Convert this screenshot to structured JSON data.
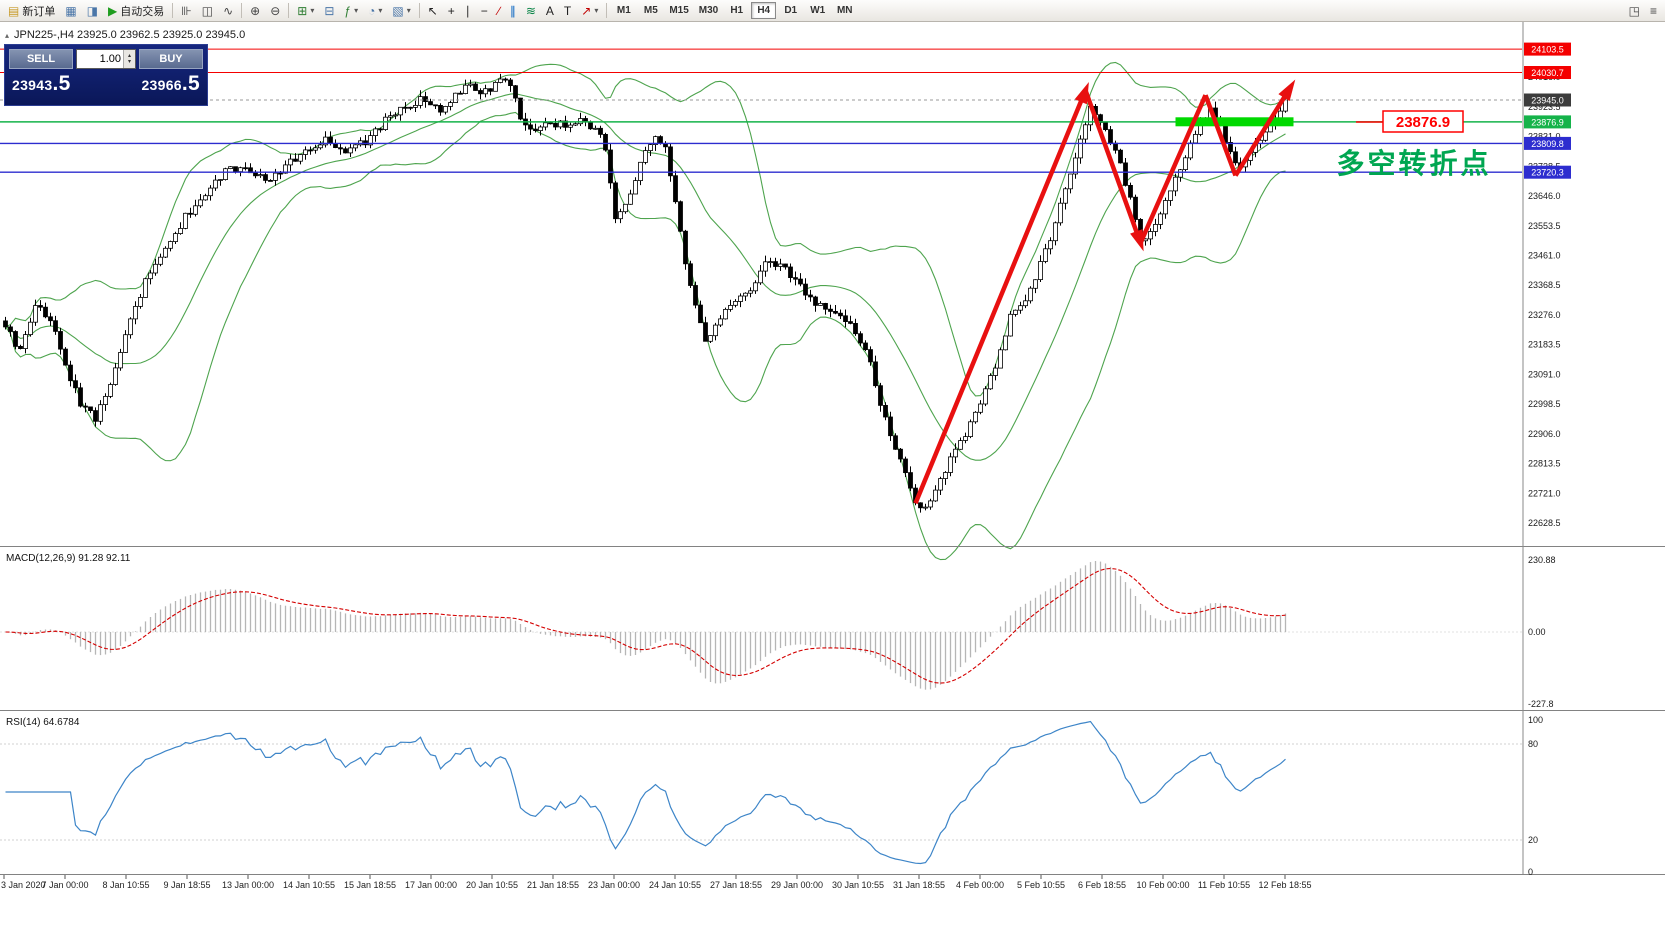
{
  "ui_icons": {
    "collapse": "▴",
    "spinner_up": "▴",
    "spinner_down": "▾",
    "dropdown": "▾"
  },
  "toolbar": {
    "items": [
      {
        "name": "new-order-button",
        "icon": "new-order-icon",
        "glyph": "▤",
        "color": "#c79a27",
        "label": "新订单"
      },
      {
        "name": "charts-window-button",
        "icon": "chart-window-icon",
        "glyph": "▦",
        "color": "#4a76a8"
      },
      {
        "name": "navigator-button",
        "icon": "navigator-icon",
        "glyph": "◨",
        "color": "#4a76a8"
      },
      {
        "name": "autotrade-button",
        "icon": "play-icon",
        "glyph": "▶",
        "color": "#1f9d1f",
        "label": "自动交易"
      },
      {
        "type": "sep"
      },
      {
        "name": "bar-chart-type-button",
        "icon": "bars-icon",
        "glyph": "⊪",
        "color": "#444"
      },
      {
        "name": "candlestick-type-button",
        "icon": "candlestick-icon",
        "glyph": "◫",
        "color": "#444"
      },
      {
        "name": "line-chart-type-button",
        "icon": "line-chart-icon",
        "glyph": "∿",
        "color": "#444"
      },
      {
        "type": "sep"
      },
      {
        "name": "zoom-in-button",
        "icon": "zoom-in-icon",
        "glyph": "⊕",
        "color": "#444"
      },
      {
        "name": "zoom-out-button",
        "icon": "zoom-out-icon",
        "glyph": "⊖",
        "color": "#444"
      },
      {
        "type": "sep"
      },
      {
        "name": "new-chart-button",
        "icon": "new-chart-icon",
        "glyph": "⊞",
        "color": "#2e7d32",
        "dropdown": true
      },
      {
        "name": "tile-windows-button",
        "icon": "tile-windows-icon",
        "glyph": "⊟",
        "color": "#4a76a8"
      },
      {
        "name": "indicators-button",
        "icon": "indicator-icon",
        "glyph": "ƒ",
        "color": "#2e7d32",
        "dropdown": true
      },
      {
        "name": "periods-button",
        "icon": "clock-icon",
        "glyph": "◔",
        "color": "#4a76a8",
        "dropdown": true
      },
      {
        "name": "templates-button",
        "icon": "template-icon",
        "glyph": "▧",
        "color": "#4a76a8",
        "dropdown": true
      },
      {
        "type": "sep"
      },
      {
        "name": "cursor-button",
        "icon": "cursor-icon",
        "glyph": "↖",
        "color": "#222"
      },
      {
        "name": "crosshair-button",
        "icon": "crosshair-icon",
        "glyph": "+",
        "color": "#222"
      },
      {
        "name": "vertical-line-button",
        "icon": "vertical-line-icon",
        "glyph": "∣",
        "color": "#222"
      },
      {
        "name": "horizontal-line-button",
        "icon": "horizontal-line-icon",
        "glyph": "−",
        "color": "#222"
      },
      {
        "name": "trendline-button",
        "icon": "trendline-icon",
        "glyph": "∕",
        "color": "#c00000"
      },
      {
        "name": "channel-button",
        "icon": "channel-icon",
        "glyph": "∥",
        "color": "#0060c0"
      },
      {
        "name": "fibonacci-button",
        "icon": "fibonacci-icon",
        "glyph": "≋",
        "color": "#008040"
      },
      {
        "name": "text-button",
        "icon": "text-icon",
        "glyph": "A",
        "color": "#222"
      },
      {
        "name": "label-button",
        "icon": "label-icon",
        "glyph": "T",
        "color": "#222"
      },
      {
        "name": "arrows-button",
        "icon": "arrow-object-icon",
        "glyph": "↗",
        "color": "#c00000",
        "dropdown": true
      },
      {
        "type": "sep"
      }
    ],
    "right_items": [
      {
        "name": "fullscreen-button",
        "icon": "fullscreen-icon",
        "glyph": "◳",
        "color": "#444"
      },
      {
        "name": "menu-button",
        "icon": "menu-icon",
        "glyph": "≡",
        "color": "#444"
      }
    ],
    "timeframes": {
      "items": [
        "M1",
        "M5",
        "M15",
        "M30",
        "H1",
        "H4",
        "D1",
        "W1",
        "MN"
      ],
      "active": "H4"
    }
  },
  "one_click": {
    "sell_label": "SELL",
    "buy_label": "BUY",
    "volume": "1.00",
    "sell_price": {
      "main": "23943",
      "pips": ".5"
    },
    "buy_price": {
      "main": "23966",
      "pips": ".5"
    }
  },
  "chart": {
    "info_line": "JPN225-,H4 23925.0 23962.5 23925.0 23945.0"
  },
  "chart_data": {
    "type": "candlestick",
    "symbol": "JPN225-",
    "timeframe": "H4",
    "ohlc": {
      "open": 23925.0,
      "high": 23962.5,
      "low": 23925.0,
      "close": 23945.0
    },
    "current_price": 23945.0,
    "candle_count": 257,
    "close_anchors": [
      [
        0,
        23250
      ],
      [
        3,
        23160
      ],
      [
        6,
        23310
      ],
      [
        9,
        23260
      ],
      [
        12,
        23120
      ],
      [
        15,
        23000
      ],
      [
        18,
        22950
      ],
      [
        21,
        23060
      ],
      [
        24,
        23220
      ],
      [
        28,
        23380
      ],
      [
        32,
        23480
      ],
      [
        36,
        23580
      ],
      [
        40,
        23660
      ],
      [
        44,
        23720
      ],
      [
        48,
        23740
      ],
      [
        52,
        23690
      ],
      [
        56,
        23740
      ],
      [
        60,
        23780
      ],
      [
        64,
        23820
      ],
      [
        68,
        23790
      ],
      [
        72,
        23810
      ],
      [
        76,
        23880
      ],
      [
        80,
        23930
      ],
      [
        84,
        23950
      ],
      [
        87,
        23900
      ],
      [
        90,
        23970
      ],
      [
        93,
        23990
      ],
      [
        96,
        23970
      ],
      [
        99,
        24000
      ],
      [
        101,
        23990
      ],
      [
        103,
        23890
      ],
      [
        106,
        23850
      ],
      [
        109,
        23880
      ],
      [
        112,
        23860
      ],
      [
        115,
        23880
      ],
      [
        118,
        23860
      ],
      [
        120,
        23790
      ],
      [
        122,
        23570
      ],
      [
        124,
        23620
      ],
      [
        126,
        23700
      ],
      [
        128,
        23780
      ],
      [
        130,
        23820
      ],
      [
        132,
        23790
      ],
      [
        134,
        23620
      ],
      [
        136,
        23430
      ],
      [
        138,
        23300
      ],
      [
        140,
        23200
      ],
      [
        143,
        23270
      ],
      [
        146,
        23310
      ],
      [
        149,
        23360
      ],
      [
        152,
        23430
      ],
      [
        155,
        23430
      ],
      [
        158,
        23380
      ],
      [
        161,
        23320
      ],
      [
        164,
        23290
      ],
      [
        167,
        23270
      ],
      [
        170,
        23230
      ],
      [
        173,
        23120
      ],
      [
        176,
        22950
      ],
      [
        179,
        22820
      ],
      [
        182,
        22700
      ],
      [
        184,
        22670
      ],
      [
        186,
        22730
      ],
      [
        189,
        22830
      ],
      [
        192,
        22900
      ],
      [
        195,
        23000
      ],
      [
        198,
        23120
      ],
      [
        201,
        23270
      ],
      [
        204,
        23310
      ],
      [
        207,
        23440
      ],
      [
        210,
        23560
      ],
      [
        213,
        23720
      ],
      [
        215,
        23820
      ],
      [
        217,
        23930
      ],
      [
        219,
        23870
      ],
      [
        221,
        23820
      ],
      [
        223,
        23740
      ],
      [
        225,
        23640
      ],
      [
        227,
        23510
      ],
      [
        229,
        23540
      ],
      [
        231,
        23590
      ],
      [
        233,
        23660
      ],
      [
        235,
        23740
      ],
      [
        237,
        23800
      ],
      [
        239,
        23870
      ],
      [
        241,
        23920
      ],
      [
        243,
        23860
      ],
      [
        245,
        23790
      ],
      [
        247,
        23730
      ],
      [
        249,
        23780
      ],
      [
        251,
        23830
      ],
      [
        253,
        23880
      ],
      [
        255,
        23920
      ],
      [
        256,
        23945
      ]
    ],
    "y_axis": {
      "ticks": [
        24016.0,
        23923.5,
        23831.0,
        23738.5,
        23646.0,
        23553.5,
        23461.0,
        23368.5,
        23276.0,
        23183.5,
        23091.0,
        22998.5,
        22906.0,
        22813.5,
        22721.0,
        22628.5
      ]
    },
    "levels": [
      {
        "price": 24103.5,
        "color": "#f40000",
        "label_bg": "#f40000",
        "width": 1
      },
      {
        "price": 24030.7,
        "color": "#f40000",
        "label_bg": "#f40000",
        "width": 1
      },
      {
        "price": 23876.9,
        "color": "#15b34a",
        "label_bg": "#15b34a",
        "width": 1.4
      },
      {
        "price": 23809.8,
        "color": "#2d2dcf",
        "label_bg": "#2d2dcf",
        "width": 1.4
      },
      {
        "price": 23720.3,
        "color": "#2d2dcf",
        "label_bg": "#2d2dcf",
        "width": 1.4
      }
    ],
    "highlight_zone": {
      "price": 23877,
      "from_index": 234,
      "to_index": 256,
      "color": "#00d900"
    },
    "trend_arrows": {
      "color": "#e81010",
      "points": [
        [
          182,
          22690
        ],
        [
          216,
          23975
        ],
        [
          227,
          23500
        ],
        [
          240,
          23960
        ],
        [
          246,
          23710
        ],
        [
          257,
          23985
        ]
      ],
      "arrow_at": [
        1,
        2,
        5
      ]
    },
    "bollinger": {
      "period": 20,
      "deviation": 2,
      "color": "#4ea44e"
    },
    "macd": {
      "label": "MACD(12,26,9) 91.28 92.11",
      "params": [
        12,
        26,
        9
      ],
      "value": 91.28,
      "signal_value": 92.11,
      "scale_labels": [
        "230.88",
        "0.00",
        "-227.8"
      ],
      "histogram_color": "#b6b6b6",
      "signal_color": "#d40000"
    },
    "rsi": {
      "label": "RSI(14) 64.6784",
      "period": 14,
      "value": 64.6784,
      "scale": [
        100,
        80,
        20,
        0
      ],
      "color": "#3d85c8"
    },
    "time_axis": [
      "3 Jan 2020",
      "7 Jan 00:00",
      "8 Jan 10:55",
      "9 Jan 18:55",
      "13 Jan 00:00",
      "14 Jan 10:55",
      "15 Jan 18:55",
      "17 Jan 00:00",
      "20 Jan 10:55",
      "21 Jan 18:55",
      "23 Jan 00:00",
      "24 Jan 10:55",
      "27 Jan 18:55",
      "29 Jan 00:00",
      "30 Jan 10:55",
      "31 Jan 18:55",
      "4 Feb 00:00",
      "5 Feb 10:55",
      "6 Feb 18:55",
      "10 Feb 00:00",
      "11 Feb 10:55",
      "12 Feb 18:55"
    ],
    "annotations": {
      "price_callout": {
        "text": "23876.9",
        "color": "#ff0000"
      },
      "note": {
        "text": "多空转折点",
        "color": "#00a651"
      }
    }
  }
}
